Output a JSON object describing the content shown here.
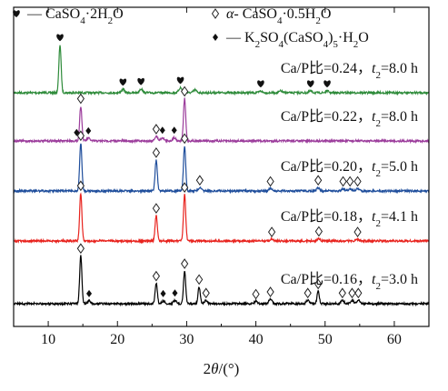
{
  "chart_data": {
    "type": "line",
    "xlabel": "2θ/(°)",
    "xlim": [
      5,
      65
    ],
    "xticks": [
      10,
      20,
      30,
      40,
      50,
      60
    ],
    "y_axis": "stacked, no ticks",
    "grid": false,
    "legend": [
      {
        "symbol": "heart",
        "label": "— CaSO4·2H2O"
      },
      {
        "symbol": "open-diamond",
        "label": "α- CaSO4·0.5H2O"
      },
      {
        "symbol": "filled-diamond",
        "label": "— K2SO4(CaSO4)5·H2O"
      }
    ],
    "series": [
      {
        "name": "Ca/P比=0.24，t2=8.0 h",
        "color": "#2e8b3a",
        "peaks": [
          {
            "x": 11.7,
            "h": 0.85
          },
          {
            "x": 20.8,
            "h": 0.06
          },
          {
            "x": 23.4,
            "h": 0.07
          },
          {
            "x": 29.1,
            "h": 0.09
          },
          {
            "x": 31.2,
            "h": 0.05
          },
          {
            "x": 40.7,
            "h": 0.03
          },
          {
            "x": 43.6,
            "h": 0.03
          },
          {
            "x": 47.9,
            "h": 0.03
          },
          {
            "x": 50.3,
            "h": 0.03
          }
        ],
        "marks": [
          {
            "x": 11.7,
            "sym": "heart"
          },
          {
            "x": 20.8,
            "sym": "heart"
          },
          {
            "x": 23.4,
            "sym": "heart"
          },
          {
            "x": 29.1,
            "sym": "heart"
          },
          {
            "x": 40.7,
            "sym": "heart"
          },
          {
            "x": 47.9,
            "sym": "heart"
          },
          {
            "x": 50.3,
            "sym": "heart"
          }
        ]
      },
      {
        "name": "Ca/P比=0.22，t2=8.0 h",
        "color": "#9c3d9c",
        "peaks": [
          {
            "x": 14.7,
            "h": 0.62
          },
          {
            "x": 15.8,
            "h": 0.05
          },
          {
            "x": 25.6,
            "h": 0.08
          },
          {
            "x": 26.5,
            "h": 0.06
          },
          {
            "x": 28.2,
            "h": 0.06
          },
          {
            "x": 29.7,
            "h": 0.75
          }
        ],
        "marks": [
          {
            "x": 14.7,
            "sym": "open-diamond"
          },
          {
            "x": 14.1,
            "sym": "filled-diamond"
          },
          {
            "x": 15.8,
            "sym": "filled-diamond"
          },
          {
            "x": 25.6,
            "sym": "open-diamond"
          },
          {
            "x": 26.5,
            "sym": "filled-diamond"
          },
          {
            "x": 28.2,
            "sym": "filled-diamond"
          },
          {
            "x": 29.7,
            "sym": "open-diamond"
          }
        ]
      },
      {
        "name": "Ca/P比=0.20，t2=5.0 h",
        "color": "#1f4e9c",
        "peaks": [
          {
            "x": 14.7,
            "h": 0.85
          },
          {
            "x": 25.6,
            "h": 0.55
          },
          {
            "x": 29.7,
            "h": 0.8
          },
          {
            "x": 31.9,
            "h": 0.06
          },
          {
            "x": 42.1,
            "h": 0.04
          },
          {
            "x": 49.0,
            "h": 0.06
          },
          {
            "x": 52.6,
            "h": 0.04
          },
          {
            "x": 53.6,
            "h": 0.04
          },
          {
            "x": 54.7,
            "h": 0.04
          }
        ],
        "marks": [
          {
            "x": 14.7,
            "sym": "open-diamond"
          },
          {
            "x": 25.6,
            "sym": "open-diamond"
          },
          {
            "x": 29.7,
            "sym": "open-diamond"
          },
          {
            "x": 31.9,
            "sym": "open-diamond"
          },
          {
            "x": 42.1,
            "sym": "open-diamond"
          },
          {
            "x": 49.0,
            "sym": "open-diamond"
          },
          {
            "x": 52.6,
            "sym": "open-diamond"
          },
          {
            "x": 53.6,
            "sym": "open-diamond"
          },
          {
            "x": 54.7,
            "sym": "open-diamond"
          }
        ]
      },
      {
        "name": "Ca/P比=0.18，t2=4.1 h",
        "color": "#e8231e",
        "peaks": [
          {
            "x": 14.7,
            "h": 0.85
          },
          {
            "x": 25.6,
            "h": 0.45
          },
          {
            "x": 29.7,
            "h": 0.82
          },
          {
            "x": 42.3,
            "h": 0.03
          },
          {
            "x": 49.1,
            "h": 0.04
          },
          {
            "x": 54.7,
            "h": 0.03
          }
        ],
        "marks": [
          {
            "x": 14.7,
            "sym": "open-diamond"
          },
          {
            "x": 25.6,
            "sym": "open-diamond"
          },
          {
            "x": 29.7,
            "sym": "open-diamond"
          },
          {
            "x": 42.3,
            "sym": "open-diamond"
          },
          {
            "x": 49.1,
            "sym": "open-diamond"
          },
          {
            "x": 54.7,
            "sym": "open-diamond"
          }
        ]
      },
      {
        "name": "Ca/P比=0.16，t2=3.0 h",
        "color": "#000000",
        "peaks": [
          {
            "x": 14.7,
            "h": 0.85
          },
          {
            "x": 15.9,
            "h": 0.05
          },
          {
            "x": 25.6,
            "h": 0.36
          },
          {
            "x": 26.6,
            "h": 0.05
          },
          {
            "x": 28.3,
            "h": 0.06
          },
          {
            "x": 29.7,
            "h": 0.58
          },
          {
            "x": 31.8,
            "h": 0.3
          },
          {
            "x": 32.8,
            "h": 0.06
          },
          {
            "x": 40.0,
            "h": 0.04
          },
          {
            "x": 42.1,
            "h": 0.08
          },
          {
            "x": 47.5,
            "h": 0.06
          },
          {
            "x": 49.0,
            "h": 0.22
          },
          {
            "x": 52.5,
            "h": 0.06
          },
          {
            "x": 53.9,
            "h": 0.06
          },
          {
            "x": 54.8,
            "h": 0.06
          }
        ],
        "marks": [
          {
            "x": 14.7,
            "sym": "open-diamond"
          },
          {
            "x": 15.9,
            "sym": "filled-diamond"
          },
          {
            "x": 25.6,
            "sym": "open-diamond"
          },
          {
            "x": 26.6,
            "sym": "filled-diamond"
          },
          {
            "x": 28.3,
            "sym": "filled-diamond"
          },
          {
            "x": 29.7,
            "sym": "open-diamond"
          },
          {
            "x": 31.8,
            "sym": "open-diamond"
          },
          {
            "x": 32.8,
            "sym": "open-diamond"
          },
          {
            "x": 40.0,
            "sym": "open-diamond"
          },
          {
            "x": 42.1,
            "sym": "open-diamond"
          },
          {
            "x": 47.5,
            "sym": "open-diamond"
          },
          {
            "x": 49.0,
            "sym": "open-diamond"
          },
          {
            "x": 52.5,
            "sym": "open-diamond"
          },
          {
            "x": 53.9,
            "sym": "open-diamond"
          },
          {
            "x": 54.8,
            "sym": "open-diamond"
          }
        ]
      }
    ]
  }
}
